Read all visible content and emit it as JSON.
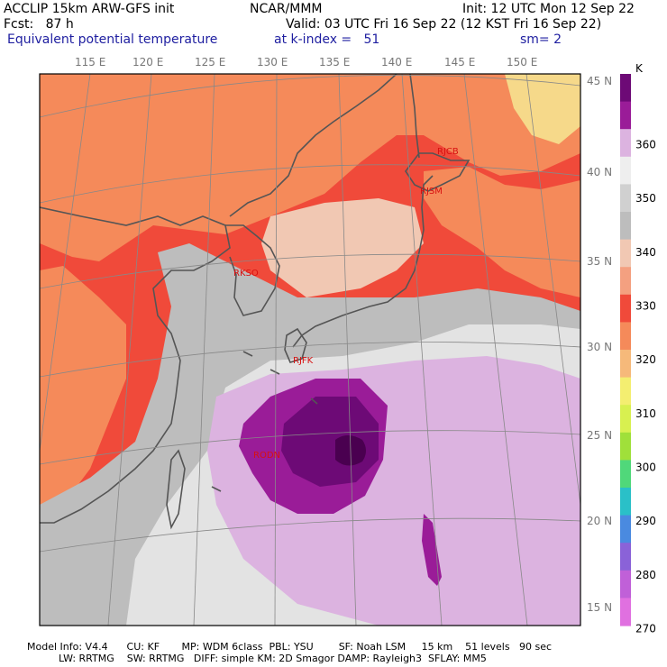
{
  "header": {
    "model": "ACCLIP 15km ARW-GFS init",
    "org": "NCAR/MMM",
    "init": "Init: 12 UTC Mon 12 Sep 22",
    "fcst": "Fcst:   87 h",
    "valid": "Valid: 03 UTC Fri 16 Sep 22 (12 KST Fri 16 Sep 22)",
    "field": "Equivalent potential temperature",
    "level": "at k-index =   51",
    "smooth": "sm= 2"
  },
  "map": {
    "lon_labels": [
      "115 E",
      "120 E",
      "125 E",
      "130 E",
      "135 E",
      "140 E",
      "145 E",
      "150 E"
    ],
    "lat_labels": [
      "45 N",
      "40 N",
      "35 N",
      "30 N",
      "25 N",
      "20 N",
      "15 N"
    ],
    "stations": [
      "RJCB",
      "RJSM",
      "RKSO",
      "RJFK",
      "RODN"
    ],
    "colors": {
      "bg_red": "#f04a3a",
      "orange": "#f58a5a",
      "salmon": "#f4a080",
      "peach": "#f1c8b3",
      "gray": "#bdbdbd",
      "light_gray": "#e3e3e3",
      "lavender": "#dcb3e0",
      "purple": "#9a1c98",
      "dark_purple": "#6d0a76"
    }
  },
  "colorbar": {
    "unit": "K",
    "ticks": [
      "360",
      "350",
      "340",
      "330",
      "320",
      "310",
      "300",
      "290",
      "280",
      "270"
    ],
    "colors": [
      "#6d0a76",
      "#9a1c98",
      "#dcb3e0",
      "#eeeeee",
      "#d0d0d0",
      "#bdbdbd",
      "#f1c8b3",
      "#f4a080",
      "#f04a3a",
      "#f58a5a",
      "#f6b97a",
      "#f4ee70",
      "#d8f050",
      "#a0e03a",
      "#50d87a",
      "#2ac0c8",
      "#4a8ae0",
      "#8a62d8",
      "#c060d8",
      "#e070e0"
    ]
  },
  "footer": {
    "line1": "Model Info: V4.4      CU: KF       MP: WDM 6class  PBL: YSU        SF: Noah LSM     15 km    51 levels   90 sec",
    "line2": "          LW: RRTMG    SW: RRTMG   DIFF: simple KM: 2D Smagor DAMP: Rayleigh3  SFLAY: MM5"
  }
}
